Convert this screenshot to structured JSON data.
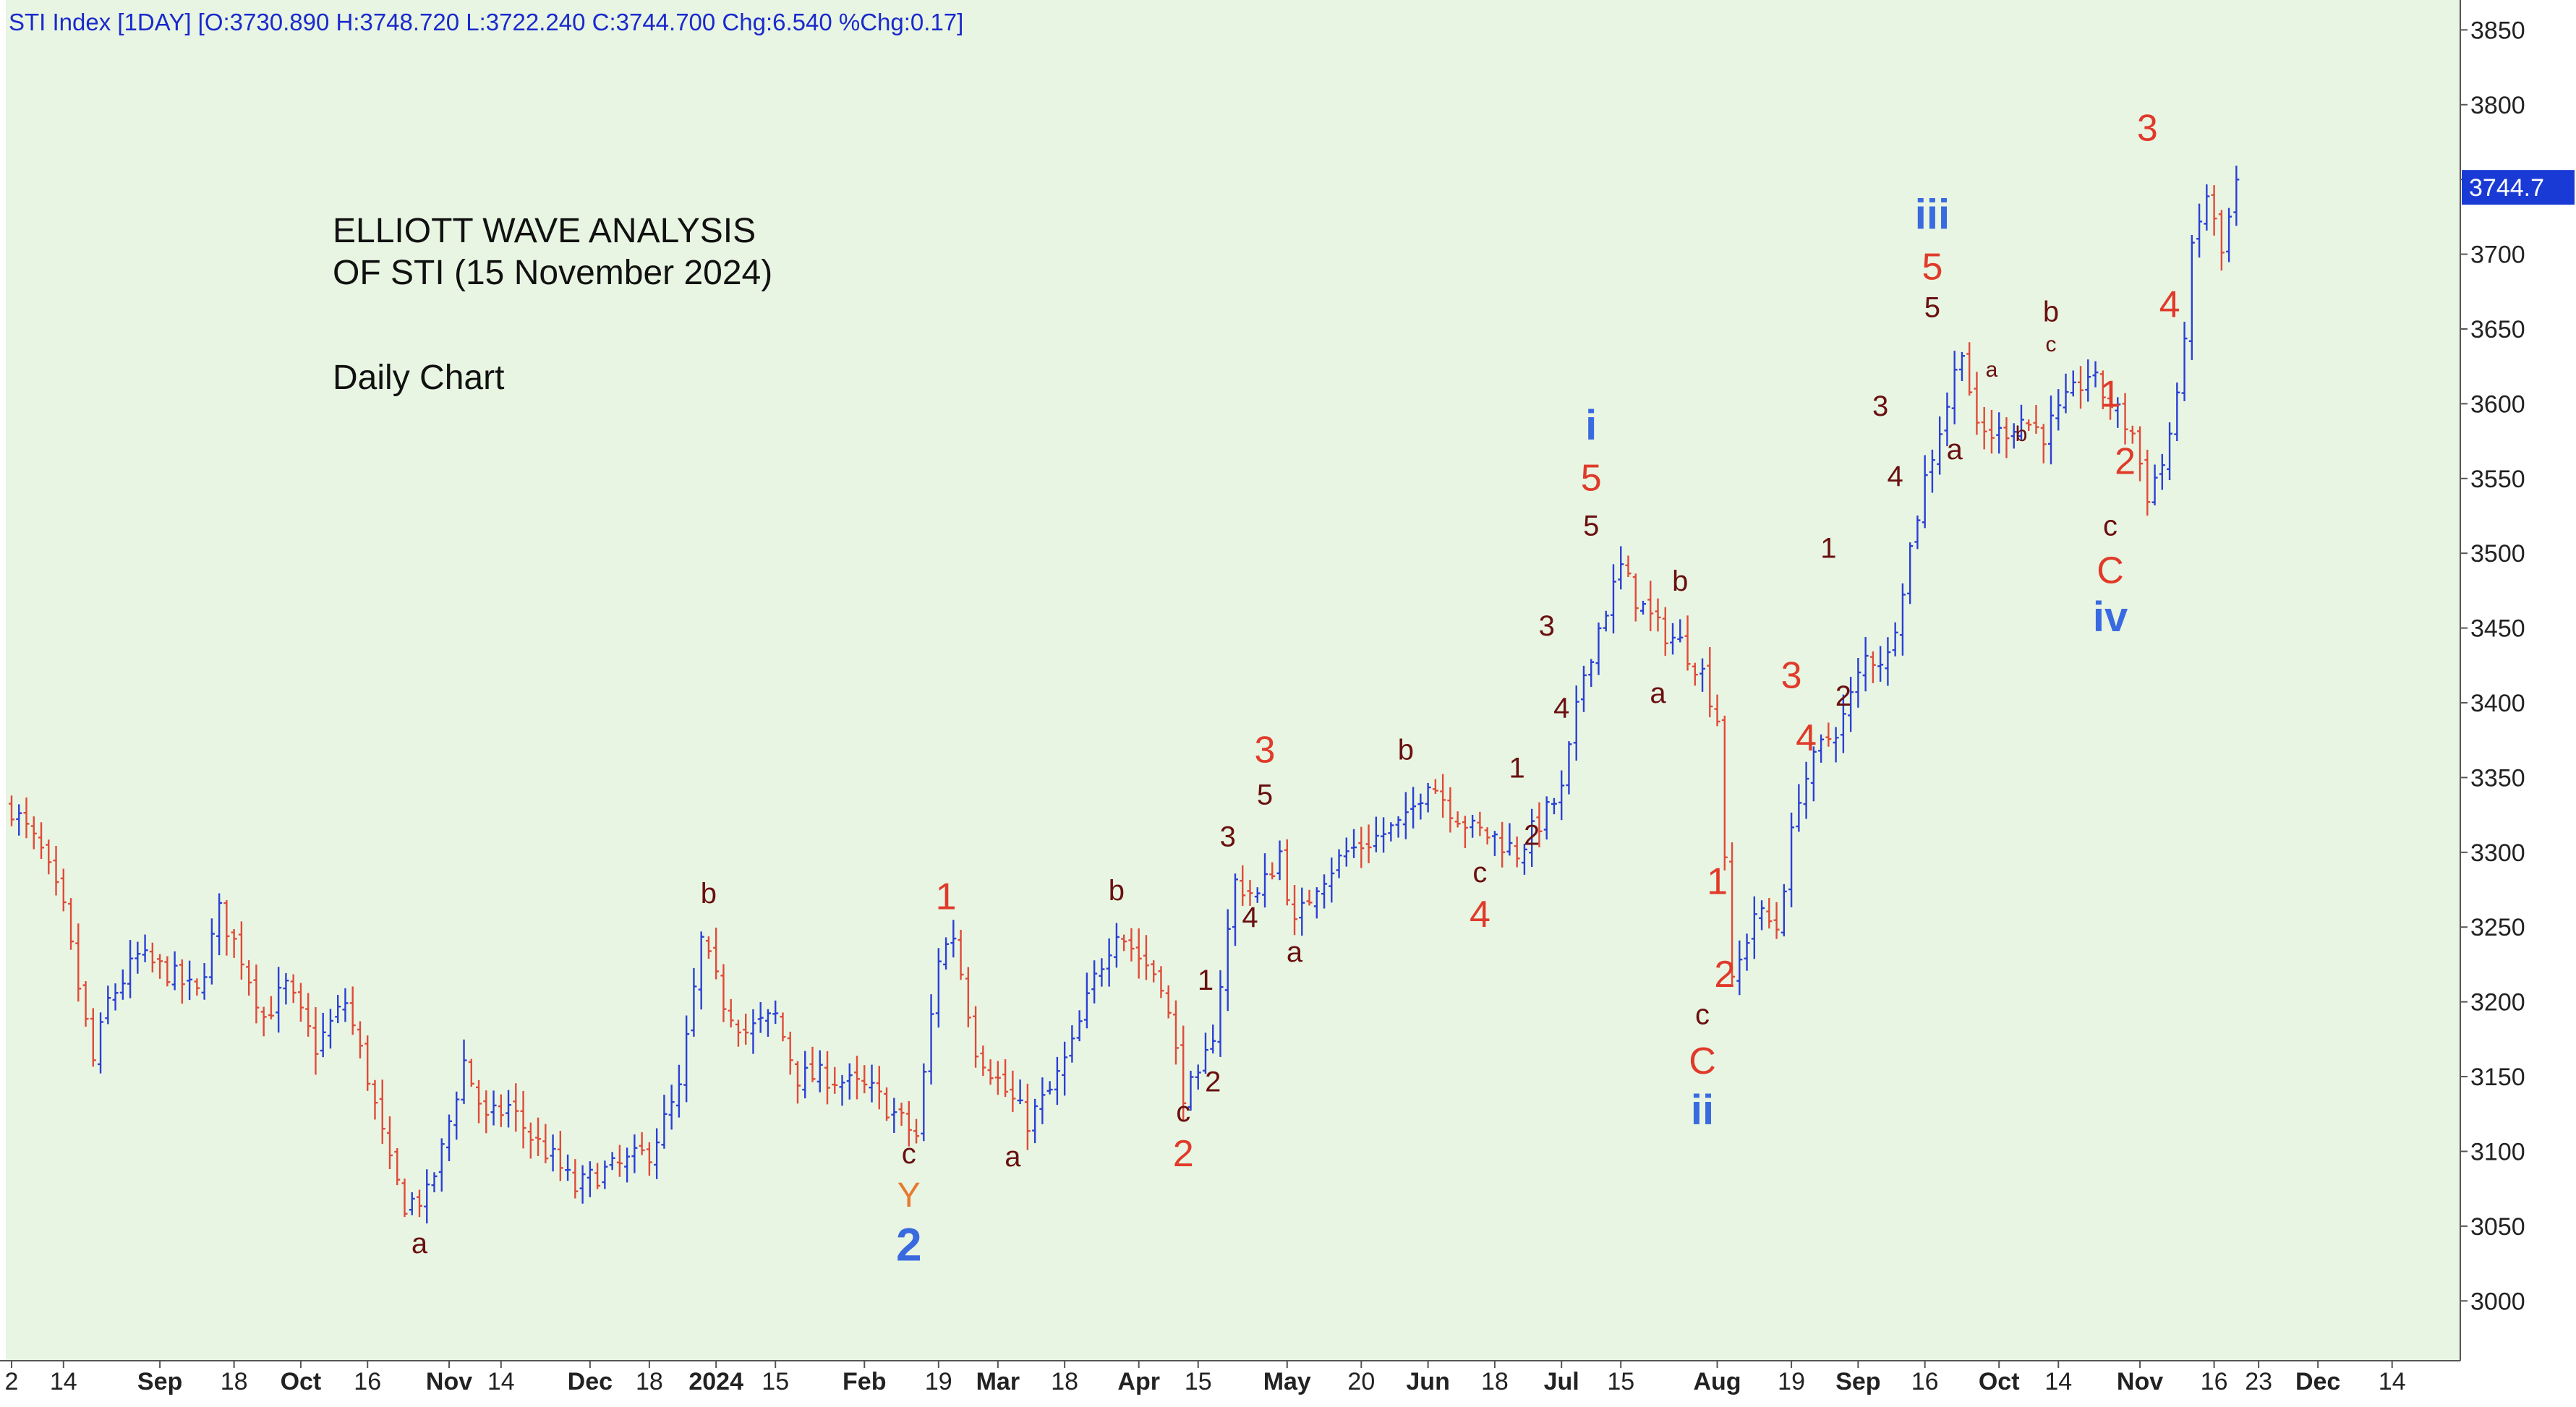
{
  "header": {
    "text": "STI Index [1DAY] [O:3730.890 H:3748.720 L:3722.240 C:3744.700 Chg:6.540 %Chg:0.17]"
  },
  "annotation": {
    "title_line1": "ELLIOTT WAVE ANALYSIS",
    "title_line2": "OF STI (15 November 2024)",
    "subtitle": "Daily Chart"
  },
  "colors": {
    "background": "#e8f5e2",
    "up_bar": "#2c3fd6",
    "down_bar": "#e04a3a",
    "wave_red": "#e03a2a",
    "wave_blue": "#3a6ae0",
    "wave_dark": "#6a1010",
    "wave_orange": "#e87a30",
    "price_label_bg": "#1a3ad6",
    "price_label_text": "#ffffff",
    "header_text": "#1a2acc"
  },
  "chart_data": {
    "type": "ohlc",
    "y_axis": {
      "min": 2960,
      "max": 3870,
      "ticks": [
        3000,
        3050,
        3100,
        3150,
        3200,
        3250,
        3300,
        3350,
        3400,
        3450,
        3500,
        3550,
        3600,
        3650,
        3700,
        3750,
        3800,
        3850
      ],
      "position": "right"
    },
    "last_price_label": "3744.7",
    "last_price_value": 3744.7,
    "x_axis": {
      "total_days": 330,
      "ticks": [
        {
          "day": 0,
          "label": "2",
          "bold": false
        },
        {
          "day": 7,
          "label": "14",
          "bold": false
        },
        {
          "day": 20,
          "label": "Sep",
          "bold": true
        },
        {
          "day": 30,
          "label": "18",
          "bold": false
        },
        {
          "day": 39,
          "label": "Oct",
          "bold": true
        },
        {
          "day": 48,
          "label": "16",
          "bold": false
        },
        {
          "day": 59,
          "label": "Nov",
          "bold": true
        },
        {
          "day": 66,
          "label": "14",
          "bold": false
        },
        {
          "day": 78,
          "label": "Dec",
          "bold": true
        },
        {
          "day": 86,
          "label": "18",
          "bold": false
        },
        {
          "day": 95,
          "label": "2024",
          "bold": true
        },
        {
          "day": 103,
          "label": "15",
          "bold": false
        },
        {
          "day": 115,
          "label": "Feb",
          "bold": true
        },
        {
          "day": 125,
          "label": "19",
          "bold": false
        },
        {
          "day": 133,
          "label": "Mar",
          "bold": true
        },
        {
          "day": 142,
          "label": "18",
          "bold": false
        },
        {
          "day": 152,
          "label": "Apr",
          "bold": true
        },
        {
          "day": 160,
          "label": "15",
          "bold": false
        },
        {
          "day": 172,
          "label": "May",
          "bold": true
        },
        {
          "day": 182,
          "label": "20",
          "bold": false
        },
        {
          "day": 191,
          "label": "Jun",
          "bold": true
        },
        {
          "day": 200,
          "label": "18",
          "bold": false
        },
        {
          "day": 209,
          "label": "Jul",
          "bold": true
        },
        {
          "day": 217,
          "label": "15",
          "bold": false
        },
        {
          "day": 230,
          "label": "Aug",
          "bold": true
        },
        {
          "day": 240,
          "label": "19",
          "bold": false
        },
        {
          "day": 249,
          "label": "Sep",
          "bold": true
        },
        {
          "day": 258,
          "label": "16",
          "bold": false
        },
        {
          "day": 268,
          "label": "Oct",
          "bold": true
        },
        {
          "day": 276,
          "label": "14",
          "bold": false
        },
        {
          "day": 287,
          "label": "Nov",
          "bold": true
        },
        {
          "day": 297,
          "label": "16",
          "bold": false
        },
        {
          "day": 303,
          "label": "23",
          "bold": false
        },
        {
          "day": 311,
          "label": "Dec",
          "bold": true
        },
        {
          "day": 321,
          "label": "14",
          "bold": false
        }
      ]
    },
    "price_path": [
      [
        0,
        3330
      ],
      [
        4,
        3300
      ],
      [
        7,
        3260
      ],
      [
        11,
        3160
      ],
      [
        13,
        3200
      ],
      [
        17,
        3230
      ],
      [
        21,
        3220
      ],
      [
        25,
        3205
      ],
      [
        28,
        3260
      ],
      [
        31,
        3230
      ],
      [
        34,
        3190
      ],
      [
        37,
        3210
      ],
      [
        41,
        3170
      ],
      [
        45,
        3200
      ],
      [
        48,
        3150
      ],
      [
        51,
        3090
      ],
      [
        53,
        3065
      ],
      [
        56,
        3070
      ],
      [
        58,
        3100
      ],
      [
        61,
        3160
      ],
      [
        64,
        3120
      ],
      [
        67,
        3130
      ],
      [
        70,
        3110
      ],
      [
        73,
        3095
      ],
      [
        76,
        3075
      ],
      [
        79,
        3085
      ],
      [
        82,
        3090
      ],
      [
        86,
        3100
      ],
      [
        90,
        3140
      ],
      [
        93,
        3240
      ],
      [
        96,
        3200
      ],
      [
        99,
        3180
      ],
      [
        103,
        3190
      ],
      [
        106,
        3150
      ],
      [
        110,
        3150
      ],
      [
        113,
        3145
      ],
      [
        116,
        3140
      ],
      [
        119,
        3125
      ],
      [
        122,
        3110
      ],
      [
        125,
        3230
      ],
      [
        127,
        3245
      ],
      [
        130,
        3170
      ],
      [
        134,
        3140
      ],
      [
        137,
        3120
      ],
      [
        140,
        3140
      ],
      [
        143,
        3170
      ],
      [
        146,
        3215
      ],
      [
        149,
        3250
      ],
      [
        152,
        3230
      ],
      [
        155,
        3215
      ],
      [
        158,
        3140
      ],
      [
        160,
        3145
      ],
      [
        162,
        3180
      ],
      [
        165,
        3280
      ],
      [
        168,
        3270
      ],
      [
        171,
        3300
      ],
      [
        173,
        3250
      ],
      [
        176,
        3280
      ],
      [
        180,
        3300
      ],
      [
        184,
        3310
      ],
      [
        188,
        3320
      ],
      [
        191,
        3350
      ],
      [
        194,
        3330
      ],
      [
        197,
        3315
      ],
      [
        200,
        3310
      ],
      [
        203,
        3300
      ],
      [
        206,
        3320
      ],
      [
        209,
        3340
      ],
      [
        212,
        3420
      ],
      [
        214,
        3450
      ],
      [
        217,
        3490
      ],
      [
        219,
        3470
      ],
      [
        222,
        3450
      ],
      [
        225,
        3440
      ],
      [
        228,
        3420
      ],
      [
        230,
        3390
      ],
      [
        232,
        3210
      ],
      [
        235,
        3260
      ],
      [
        238,
        3250
      ],
      [
        241,
        3340
      ],
      [
        244,
        3370
      ],
      [
        247,
        3390
      ],
      [
        250,
        3430
      ],
      [
        253,
        3430
      ],
      [
        255,
        3480
      ],
      [
        258,
        3550
      ],
      [
        261,
        3600
      ],
      [
        263,
        3640
      ],
      [
        265,
        3580
      ],
      [
        268,
        3580
      ],
      [
        271,
        3590
      ],
      [
        274,
        3580
      ],
      [
        277,
        3600
      ],
      [
        280,
        3620
      ],
      [
        283,
        3600
      ],
      [
        286,
        3580
      ],
      [
        288,
        3540
      ],
      [
        290,
        3560
      ],
      [
        292,
        3600
      ],
      [
        294,
        3700
      ],
      [
        296,
        3740
      ],
      [
        298,
        3700
      ],
      [
        300,
        3745
      ]
    ],
    "wave_labels": [
      {
        "text": "a",
        "day": 55,
        "price": 3032,
        "color": "dark",
        "size": 40
      },
      {
        "text": "b",
        "day": 94,
        "price": 3266,
        "color": "dark",
        "size": 40
      },
      {
        "text": "c",
        "day": 121,
        "price": 3092,
        "color": "dark",
        "size": 40
      },
      {
        "text": "Y",
        "day": 121,
        "price": 3063,
        "color": "orange",
        "size": 48
      },
      {
        "text": "2",
        "day": 121,
        "price": 3027,
        "color": "blue",
        "size": 64
      },
      {
        "text": "1",
        "day": 126,
        "price": 3262,
        "color": "red",
        "size": 52
      },
      {
        "text": "a",
        "day": 135,
        "price": 3090,
        "color": "dark",
        "size": 40
      },
      {
        "text": "b",
        "day": 149,
        "price": 3268,
        "color": "dark",
        "size": 40
      },
      {
        "text": "c",
        "day": 158,
        "price": 3120,
        "color": "dark",
        "size": 40
      },
      {
        "text": "2",
        "day": 158,
        "price": 3090,
        "color": "red",
        "size": 52
      },
      {
        "text": "1",
        "day": 161,
        "price": 3208,
        "color": "dark",
        "size": 40
      },
      {
        "text": "2",
        "day": 162,
        "price": 3140,
        "color": "dark",
        "size": 40
      },
      {
        "text": "3",
        "day": 164,
        "price": 3304,
        "color": "dark",
        "size": 40
      },
      {
        "text": "4",
        "day": 167,
        "price": 3250,
        "color": "dark",
        "size": 40
      },
      {
        "text": "3",
        "day": 169,
        "price": 3360,
        "color": "red",
        "size": 52
      },
      {
        "text": "5",
        "day": 169,
        "price": 3332,
        "color": "dark",
        "size": 40
      },
      {
        "text": "a",
        "day": 173,
        "price": 3227,
        "color": "dark",
        "size": 40
      },
      {
        "text": "b",
        "day": 188,
        "price": 3362,
        "color": "dark",
        "size": 40
      },
      {
        "text": "c",
        "day": 198,
        "price": 3280,
        "color": "dark",
        "size": 40
      },
      {
        "text": "4",
        "day": 198,
        "price": 3250,
        "color": "red",
        "size": 52
      },
      {
        "text": "1",
        "day": 203,
        "price": 3350,
        "color": "dark",
        "size": 40
      },
      {
        "text": "2",
        "day": 205,
        "price": 3305,
        "color": "dark",
        "size": 40
      },
      {
        "text": "3",
        "day": 207,
        "price": 3445,
        "color": "dark",
        "size": 40
      },
      {
        "text": "4",
        "day": 209,
        "price": 3390,
        "color": "dark",
        "size": 40
      },
      {
        "text": "i",
        "day": 213,
        "price": 3576,
        "color": "blue",
        "size": 58
      },
      {
        "text": "5",
        "day": 213,
        "price": 3542,
        "color": "red",
        "size": 52
      },
      {
        "text": "5",
        "day": 213,
        "price": 3512,
        "color": "dark",
        "size": 40
      },
      {
        "text": "a",
        "day": 222,
        "price": 3400,
        "color": "dark",
        "size": 40
      },
      {
        "text": "b",
        "day": 225,
        "price": 3475,
        "color": "dark",
        "size": 40
      },
      {
        "text": "c",
        "day": 228,
        "price": 3185,
        "color": "dark",
        "size": 40
      },
      {
        "text": "C",
        "day": 228,
        "price": 3152,
        "color": "red",
        "size": 52
      },
      {
        "text": "ii",
        "day": 228,
        "price": 3118,
        "color": "blue",
        "size": 58
      },
      {
        "text": "1",
        "day": 230,
        "price": 3272,
        "color": "red",
        "size": 52
      },
      {
        "text": "2",
        "day": 231,
        "price": 3210,
        "color": "red",
        "size": 52
      },
      {
        "text": "3",
        "day": 240,
        "price": 3410,
        "color": "red",
        "size": 52
      },
      {
        "text": "4",
        "day": 242,
        "price": 3368,
        "color": "red",
        "size": 52
      },
      {
        "text": "1",
        "day": 245,
        "price": 3497,
        "color": "dark",
        "size": 40
      },
      {
        "text": "2",
        "day": 247,
        "price": 3398,
        "color": "dark",
        "size": 40
      },
      {
        "text": "3",
        "day": 252,
        "price": 3592,
        "color": "dark",
        "size": 40
      },
      {
        "text": "4",
        "day": 254,
        "price": 3545,
        "color": "dark",
        "size": 40
      },
      {
        "text": "iii",
        "day": 259,
        "price": 3717,
        "color": "blue",
        "size": 58
      },
      {
        "text": "5",
        "day": 259,
        "price": 3683,
        "color": "red",
        "size": 52
      },
      {
        "text": "5",
        "day": 259,
        "price": 3658,
        "color": "dark",
        "size": 40
      },
      {
        "text": "a",
        "day": 262,
        "price": 3563,
        "color": "dark",
        "size": 40
      },
      {
        "text": "a",
        "day": 267,
        "price": 3618,
        "color": "dark",
        "size": 30
      },
      {
        "text": "b",
        "day": 271,
        "price": 3575,
        "color": "dark",
        "size": 30
      },
      {
        "text": "b",
        "day": 275,
        "price": 3655,
        "color": "dark",
        "size": 40
      },
      {
        "text": "c",
        "day": 275,
        "price": 3635,
        "color": "dark",
        "size": 30
      },
      {
        "text": "1",
        "day": 283,
        "price": 3598,
        "color": "red",
        "size": 52
      },
      {
        "text": "2",
        "day": 285,
        "price": 3553,
        "color": "red",
        "size": 52
      },
      {
        "text": "c",
        "day": 283,
        "price": 3512,
        "color": "dark",
        "size": 40
      },
      {
        "text": "C",
        "day": 283,
        "price": 3480,
        "color": "red",
        "size": 52
      },
      {
        "text": "iv",
        "day": 283,
        "price": 3448,
        "color": "blue",
        "size": 58
      },
      {
        "text": "3",
        "day": 288,
        "price": 3776,
        "color": "red",
        "size": 52
      },
      {
        "text": "4",
        "day": 291,
        "price": 3658,
        "color": "red",
        "size": 52
      }
    ]
  }
}
